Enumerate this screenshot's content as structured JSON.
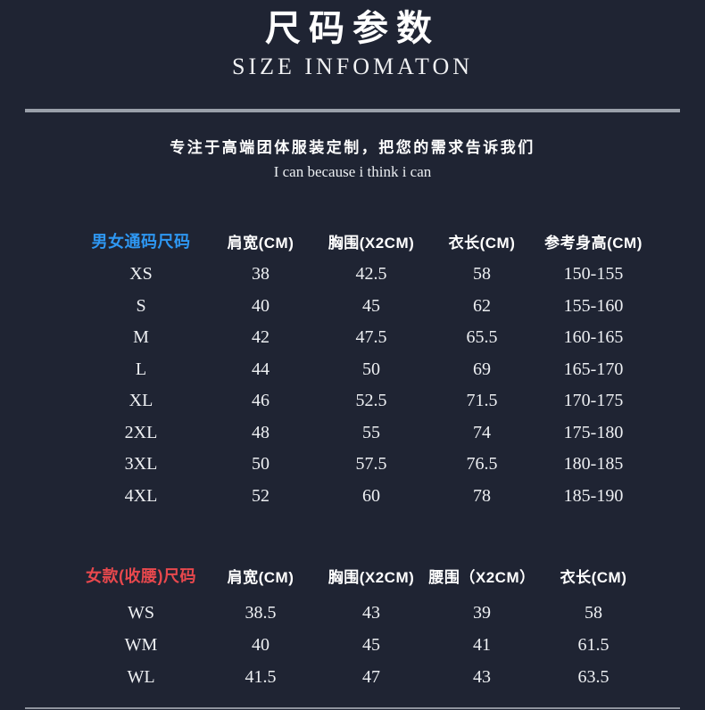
{
  "header": {
    "title_cn": "尺码参数",
    "title_en": "SIZE INFOMATON",
    "tagline_cn": "专注于高端团体服装定制，把您的需求告诉我们",
    "tagline_en": "I can because i think i can"
  },
  "colors": {
    "background": "#1f2433",
    "unisex_title": "#2e97f2",
    "women_title": "#e8484d",
    "divider": "#9aa0aa",
    "text": "#ffffff"
  },
  "tables": {
    "unisex": {
      "title": "男女通码尺码",
      "headers": [
        "肩宽(CM)",
        "胸围(X2CM)",
        "衣长(CM)",
        "参考身高(CM)"
      ],
      "rows": [
        {
          "size": "XS",
          "values": [
            "38",
            "42.5",
            "58",
            "150-155"
          ]
        },
        {
          "size": "S",
          "values": [
            "40",
            "45",
            "62",
            "155-160"
          ]
        },
        {
          "size": "M",
          "values": [
            "42",
            "47.5",
            "65.5",
            "160-165"
          ]
        },
        {
          "size": "L",
          "values": [
            "44",
            "50",
            "69",
            "165-170"
          ]
        },
        {
          "size": "XL",
          "values": [
            "46",
            "52.5",
            "71.5",
            "170-175"
          ]
        },
        {
          "size": "2XL",
          "values": [
            "48",
            "55",
            "74",
            "175-180"
          ]
        },
        {
          "size": "3XL",
          "values": [
            "50",
            "57.5",
            "76.5",
            "180-185"
          ]
        },
        {
          "size": "4XL",
          "values": [
            "52",
            "60",
            "78",
            "185-190"
          ]
        }
      ]
    },
    "women": {
      "title": "女款(收腰)尺码",
      "headers": [
        "肩宽(CM)",
        "胸围(X2CM)",
        "腰围（X2CM）",
        "衣长(CM)"
      ],
      "rows": [
        {
          "size": "WS",
          "values": [
            "38.5",
            "43",
            "39",
            "58"
          ]
        },
        {
          "size": "WM",
          "values": [
            "40",
            "45",
            "41",
            "61.5"
          ]
        },
        {
          "size": "WL",
          "values": [
            "41.5",
            "47",
            "43",
            "63.5"
          ]
        }
      ]
    }
  }
}
